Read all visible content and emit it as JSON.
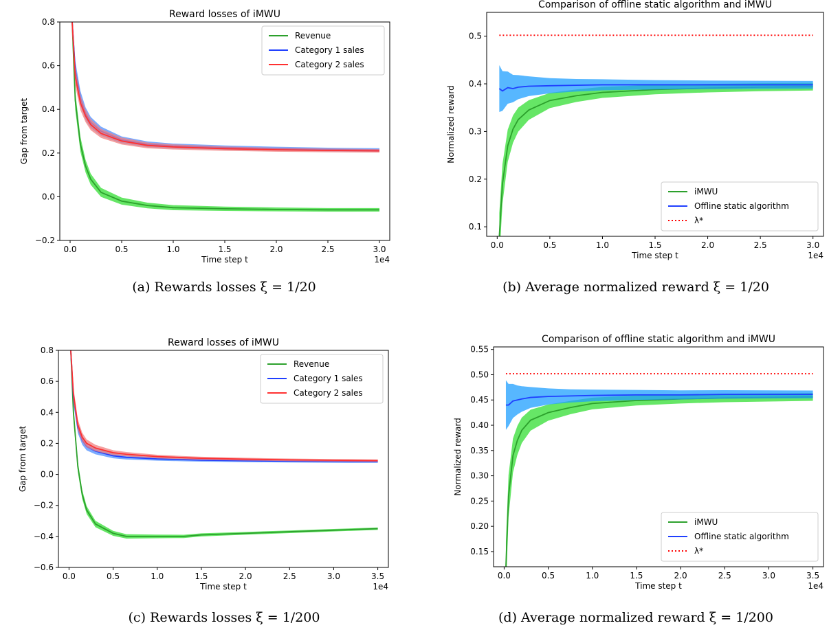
{
  "chart_data": [
    {
      "id": "a",
      "type": "line",
      "title": "Reward losses of iMWU",
      "xlabel": "Time step t",
      "ylabel": "Gap from target",
      "x_offset_label": "1e4",
      "xlim": [
        -0.1,
        3.1
      ],
      "ylim": [
        -0.2,
        0.8
      ],
      "xticks": [
        "0.0",
        "0.5",
        "1.0",
        "1.5",
        "2.0",
        "2.5",
        "3.0"
      ],
      "yticks": [
        "−0.2",
        "0.0",
        "0.2",
        "0.4",
        "0.6",
        "0.8"
      ],
      "legend_position": "top-right",
      "x": [
        0.02,
        0.05,
        0.1,
        0.15,
        0.2,
        0.3,
        0.5,
        0.75,
        1.0,
        1.5,
        2.0,
        2.5,
        3.0
      ],
      "series": [
        {
          "name": "Revenue",
          "color": "#2ca02c",
          "band_color": "#33dd33",
          "values": [
            0.8,
            0.44,
            0.24,
            0.14,
            0.08,
            0.02,
            -0.02,
            -0.04,
            -0.05,
            -0.055,
            -0.058,
            -0.06,
            -0.06
          ]
        },
        {
          "name": "Category 1 sales",
          "color": "#1f3fff",
          "band_color": "#4f8fff",
          "values": [
            0.8,
            0.58,
            0.45,
            0.38,
            0.34,
            0.3,
            0.26,
            0.24,
            0.232,
            0.225,
            0.22,
            0.216,
            0.214
          ]
        },
        {
          "name": "Category 2 sales",
          "color": "#ff3030",
          "band_color": "#f08080",
          "values": [
            0.8,
            0.55,
            0.43,
            0.37,
            0.33,
            0.29,
            0.255,
            0.235,
            0.228,
            0.22,
            0.215,
            0.212,
            0.21
          ]
        }
      ],
      "caption": "(a) Rewards losses ξ = 1/20"
    },
    {
      "id": "b",
      "type": "line",
      "title": "Comparison of offline static algorithm and iMWU",
      "xlabel": "Time step t",
      "ylabel": "Normalized reward",
      "x_offset_label": "1e4",
      "xlim": [
        -0.1,
        3.1
      ],
      "ylim": [
        0.08,
        0.55
      ],
      "xticks": [
        "0.0",
        "0.5",
        "1.0",
        "1.5",
        "2.0",
        "2.5",
        "3.0"
      ],
      "yticks": [
        "0.1",
        "0.2",
        "0.3",
        "0.4",
        "0.5"
      ],
      "legend_position": "bottom-right",
      "x": [
        0.02,
        0.05,
        0.1,
        0.15,
        0.2,
        0.3,
        0.5,
        0.75,
        1.0,
        1.5,
        2.0,
        2.5,
        3.0
      ],
      "series": [
        {
          "name": "iMWU",
          "color": "#2ca02c",
          "band_color": "#33dd33",
          "values": [
            0.08,
            0.19,
            0.27,
            0.305,
            0.325,
            0.345,
            0.365,
            0.375,
            0.382,
            0.388,
            0.391,
            0.393,
            0.394
          ]
        },
        {
          "name": "Offline static algorithm",
          "color": "#1f3fff",
          "band_color": "#1f9fff",
          "values": [
            0.39,
            0.385,
            0.392,
            0.39,
            0.393,
            0.395,
            0.396,
            0.397,
            0.398,
            0.398,
            0.398,
            0.398,
            0.398
          ]
        },
        {
          "name": "λ*",
          "color": "#ff0000",
          "dashed": true,
          "values": [
            0.502,
            0.502,
            0.502,
            0.502,
            0.502,
            0.502,
            0.502,
            0.502,
            0.502,
            0.502,
            0.502,
            0.502,
            0.502
          ]
        }
      ],
      "caption": "(b) Average normalized reward ξ = 1/20"
    },
    {
      "id": "c",
      "type": "line",
      "title": "Reward losses of iMWU",
      "xlabel": "Time step t",
      "ylabel": "Gap from target",
      "x_offset_label": "1e4",
      "xlim": [
        -0.12,
        3.62
      ],
      "ylim": [
        -0.6,
        0.8
      ],
      "xticks": [
        "0.0",
        "0.5",
        "1.0",
        "1.5",
        "2.0",
        "2.5",
        "3.0",
        "3.5"
      ],
      "yticks": [
        "−0.6",
        "−0.4",
        "−0.2",
        "0.0",
        "0.2",
        "0.4",
        "0.6",
        "0.8"
      ],
      "legend_position": "top-right",
      "x": [
        0.02,
        0.05,
        0.1,
        0.15,
        0.2,
        0.3,
        0.5,
        0.65,
        1.0,
        1.3,
        1.5,
        2.0,
        2.5,
        3.0,
        3.5
      ],
      "series": [
        {
          "name": "Revenue",
          "color": "#2ca02c",
          "band_color": "#33dd33",
          "values": [
            0.8,
            0.4,
            0.05,
            -0.13,
            -0.23,
            -0.32,
            -0.38,
            -0.4,
            -0.4,
            -0.4,
            -0.39,
            -0.38,
            -0.37,
            -0.36,
            -0.35
          ]
        },
        {
          "name": "Category 1 sales",
          "color": "#1f3fff",
          "band_color": "#4f8fff",
          "values": [
            0.8,
            0.5,
            0.3,
            0.22,
            0.18,
            0.15,
            0.12,
            0.11,
            0.1,
            0.095,
            0.092,
            0.088,
            0.085,
            0.083,
            0.082
          ]
        },
        {
          "name": "Category 2 sales",
          "color": "#ff3030",
          "band_color": "#f08080",
          "values": [
            0.8,
            0.52,
            0.32,
            0.24,
            0.2,
            0.17,
            0.14,
            0.13,
            0.115,
            0.108,
            0.104,
            0.098,
            0.094,
            0.091,
            0.089
          ]
        }
      ],
      "caption": "(c) Rewards losses ξ = 1/200"
    },
    {
      "id": "d",
      "type": "line",
      "title": "Comparison of offline static algorithm and iMWU",
      "xlabel": "Time step t",
      "ylabel": "Normalized reward",
      "x_offset_label": "1e4",
      "xlim": [
        -0.12,
        3.62
      ],
      "ylim": [
        0.12,
        0.555
      ],
      "xticks": [
        "0.0",
        "0.5",
        "1.0",
        "1.5",
        "2.0",
        "2.5",
        "3.0",
        "3.5"
      ],
      "yticks": [
        "0.15",
        "0.20",
        "0.25",
        "0.30",
        "0.35",
        "0.40",
        "0.45",
        "0.50",
        "0.55"
      ],
      "legend_position": "bottom-right",
      "x": [
        0.02,
        0.05,
        0.1,
        0.15,
        0.2,
        0.3,
        0.5,
        0.75,
        1.0,
        1.5,
        2.0,
        2.5,
        3.0,
        3.5
      ],
      "series": [
        {
          "name": "iMWU",
          "color": "#2ca02c",
          "band_color": "#33dd33",
          "values": [
            0.12,
            0.26,
            0.34,
            0.37,
            0.39,
            0.41,
            0.425,
            0.435,
            0.443,
            0.449,
            0.452,
            0.454,
            0.455,
            0.456
          ]
        },
        {
          "name": "Offline static algorithm",
          "color": "#1f3fff",
          "band_color": "#1f9fff",
          "values": [
            0.44,
            0.44,
            0.448,
            0.45,
            0.452,
            0.455,
            0.457,
            0.458,
            0.459,
            0.46,
            0.46,
            0.461,
            0.461,
            0.461
          ]
        },
        {
          "name": "λ*",
          "color": "#ff0000",
          "dashed": true,
          "values": [
            0.502,
            0.502,
            0.502,
            0.502,
            0.502,
            0.502,
            0.502,
            0.502,
            0.502,
            0.502,
            0.502,
            0.502,
            0.502,
            0.502
          ]
        }
      ],
      "caption": "(d) Average normalized reward ξ = 1/200"
    }
  ]
}
